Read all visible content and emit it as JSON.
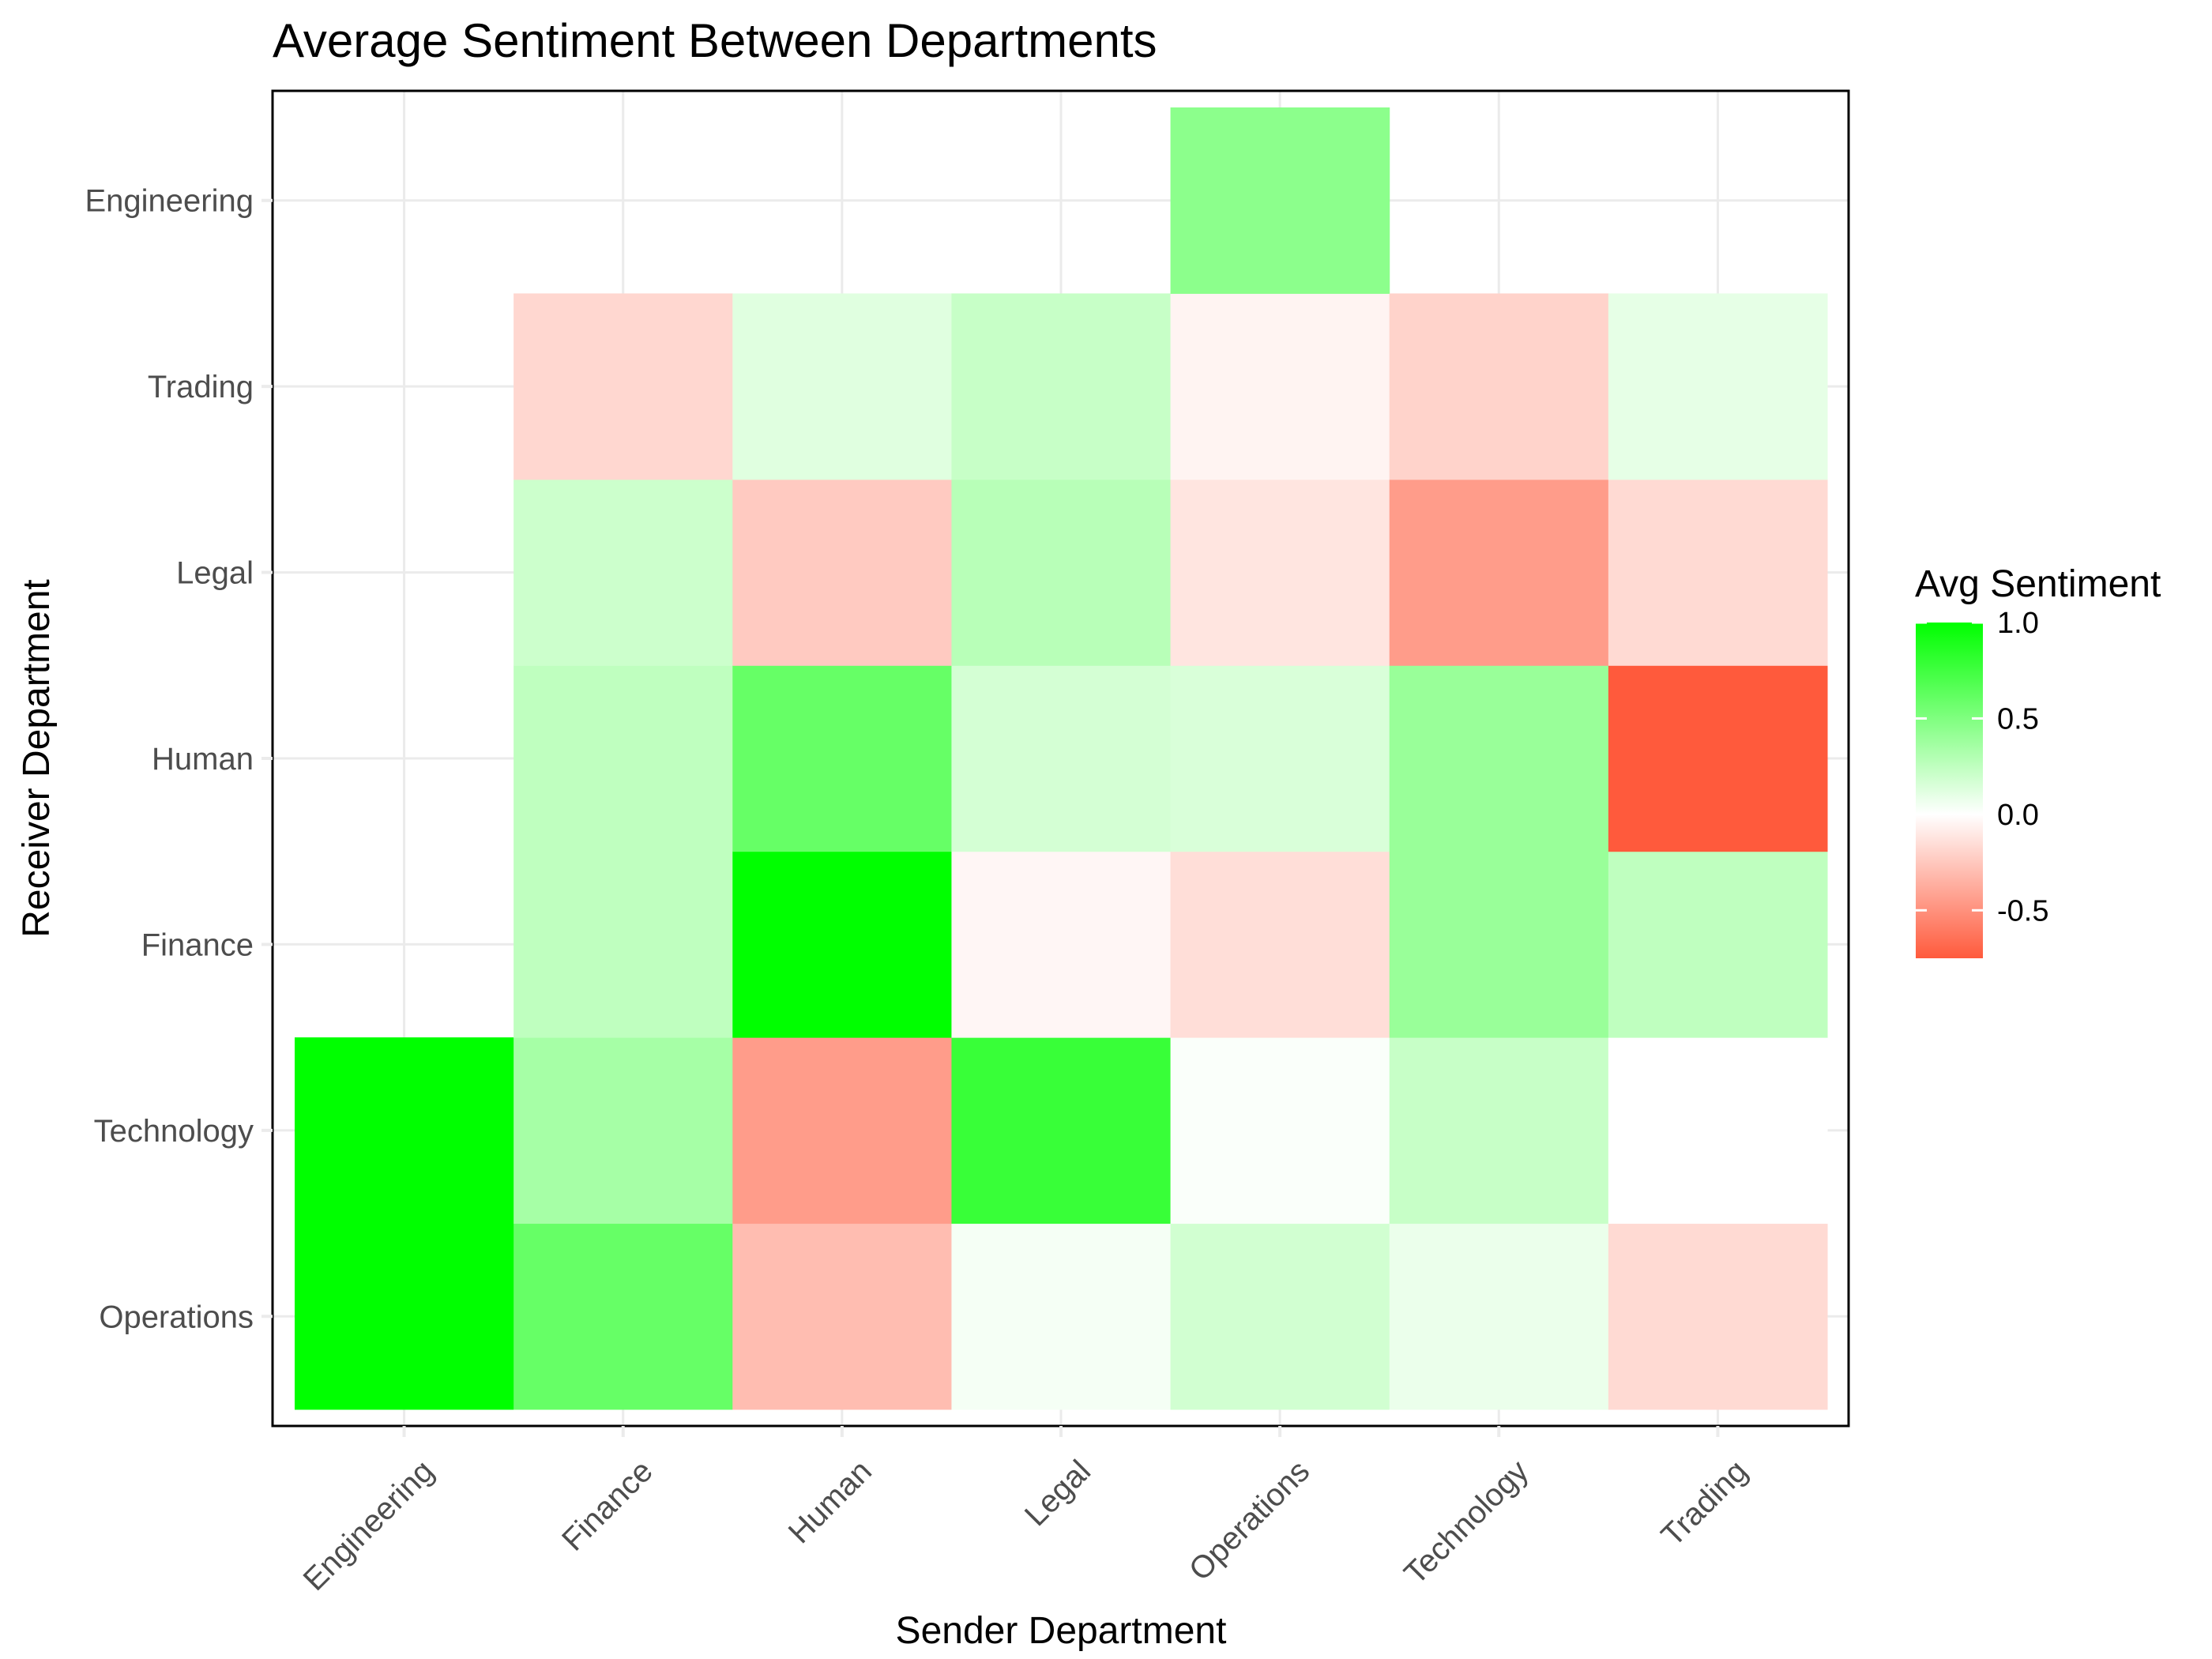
{
  "chart_data": {
    "type": "heatmap",
    "title": "Average Sentiment Between Departments",
    "xlabel": "Sender Department",
    "ylabel": "Receiver Department",
    "x_categories": [
      "Engineering",
      "Finance",
      "Human",
      "Legal",
      "Operations",
      "Technology",
      "Trading"
    ],
    "y_categories": [
      "Operations",
      "Technology",
      "Finance",
      "Human",
      "Legal",
      "Trading",
      "Engineering"
    ],
    "cells": [
      {
        "sender": "Engineering",
        "receiver": "Operations",
        "value": 1.0
      },
      {
        "sender": "Engineering",
        "receiver": "Technology",
        "value": 1.0
      },
      {
        "sender": "Finance",
        "receiver": "Operations",
        "value": 0.6
      },
      {
        "sender": "Finance",
        "receiver": "Technology",
        "value": 0.35
      },
      {
        "sender": "Finance",
        "receiver": "Finance",
        "value": 0.25
      },
      {
        "sender": "Finance",
        "receiver": "Human",
        "value": 0.25
      },
      {
        "sender": "Finance",
        "receiver": "Legal",
        "value": 0.2
      },
      {
        "sender": "Finance",
        "receiver": "Trading",
        "value": -0.18
      },
      {
        "sender": "Human",
        "receiver": "Operations",
        "value": -0.3
      },
      {
        "sender": "Human",
        "receiver": "Technology",
        "value": -0.45
      },
      {
        "sender": "Human",
        "receiver": "Finance",
        "value": 1.0
      },
      {
        "sender": "Human",
        "receiver": "Human",
        "value": 0.6
      },
      {
        "sender": "Human",
        "receiver": "Legal",
        "value": -0.24
      },
      {
        "sender": "Human",
        "receiver": "Trading",
        "value": 0.12
      },
      {
        "sender": "Legal",
        "receiver": "Operations",
        "value": 0.04
      },
      {
        "sender": "Legal",
        "receiver": "Technology",
        "value": 0.78
      },
      {
        "sender": "Legal",
        "receiver": "Finance",
        "value": -0.04
      },
      {
        "sender": "Legal",
        "receiver": "Human",
        "value": 0.17
      },
      {
        "sender": "Legal",
        "receiver": "Legal",
        "value": 0.28
      },
      {
        "sender": "Legal",
        "receiver": "Trading",
        "value": 0.22
      },
      {
        "sender": "Operations",
        "receiver": "Operations",
        "value": 0.18
      },
      {
        "sender": "Operations",
        "receiver": "Technology",
        "value": 0.02
      },
      {
        "sender": "Operations",
        "receiver": "Finance",
        "value": -0.15
      },
      {
        "sender": "Operations",
        "receiver": "Human",
        "value": 0.15
      },
      {
        "sender": "Operations",
        "receiver": "Legal",
        "value": -0.12
      },
      {
        "sender": "Operations",
        "receiver": "Trading",
        "value": -0.05
      },
      {
        "sender": "Operations",
        "receiver": "Engineering",
        "value": 0.45
      },
      {
        "sender": "Technology",
        "receiver": "Operations",
        "value": 0.08
      },
      {
        "sender": "Technology",
        "receiver": "Technology",
        "value": 0.22
      },
      {
        "sender": "Technology",
        "receiver": "Finance",
        "value": 0.4
      },
      {
        "sender": "Technology",
        "receiver": "Human",
        "value": 0.4
      },
      {
        "sender": "Technology",
        "receiver": "Legal",
        "value": -0.45
      },
      {
        "sender": "Technology",
        "receiver": "Trading",
        "value": -0.2
      },
      {
        "sender": "Trading",
        "receiver": "Operations",
        "value": -0.17
      },
      {
        "sender": "Trading",
        "receiver": "Technology",
        "value": 0.0
      },
      {
        "sender": "Trading",
        "receiver": "Finance",
        "value": 0.25
      },
      {
        "sender": "Trading",
        "receiver": "Human",
        "value": -0.75
      },
      {
        "sender": "Trading",
        "receiver": "Legal",
        "value": -0.17
      },
      {
        "sender": "Trading",
        "receiver": "Trading",
        "value": 0.1
      }
    ],
    "color_scale": {
      "min": -0.75,
      "mid": 0.0,
      "max": 1.0,
      "low_color": "#ff5a3c",
      "mid_color": "#ffffff",
      "high_color": "#00ff00"
    },
    "legend": {
      "title": "Avg Sentiment",
      "placement": "right",
      "ticks": [
        1.0,
        0.5,
        0.0,
        -0.5
      ],
      "tick_labels": [
        "1.0",
        "0.5",
        "0.0",
        "-0.5"
      ]
    },
    "grid": true
  }
}
